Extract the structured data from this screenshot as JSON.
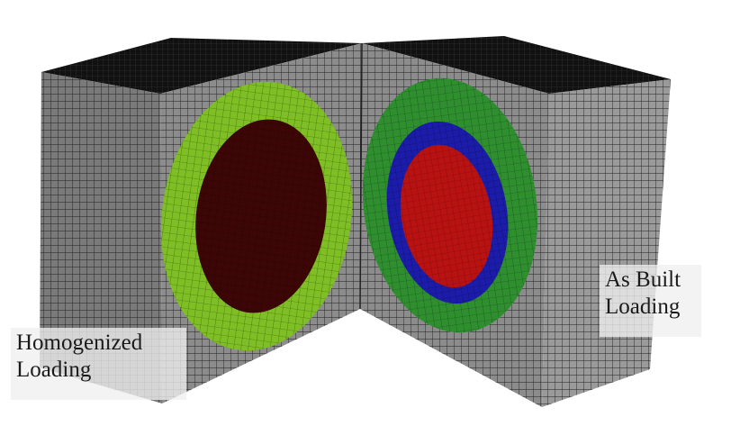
{
  "labels": {
    "homogenized": {
      "line1": "Homogenized",
      "line2": "Loading"
    },
    "as_built": {
      "line1": "As Built",
      "line2": "Loading"
    }
  },
  "colors": {
    "background": "#ffffff",
    "mesh_gray": "#8a8a8a",
    "mesh_lines": "#1c1c1c",
    "top_face": "#151515",
    "homogenized_outer_ring": "#7fbf25",
    "homogenized_core": "#3a0505",
    "as_built_outer_ring": "#2f8f2f",
    "as_built_blue_ring": "#1a1aa8",
    "as_built_core": "#b01010"
  }
}
